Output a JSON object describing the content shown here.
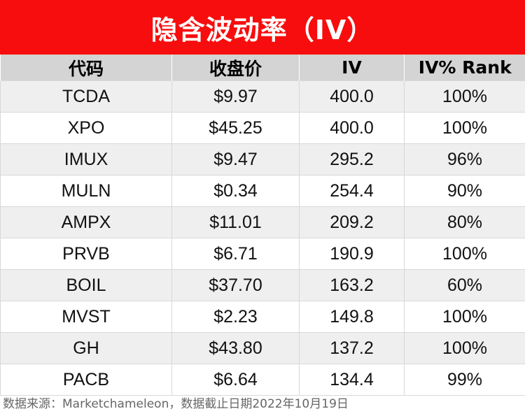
{
  "title": "隐含波动率（IV）",
  "headers": [
    "代码",
    "收盘价",
    "IV",
    "IV% Rank"
  ],
  "rows": [
    [
      "TCDA",
      "$9.97",
      "400.0",
      "100%"
    ],
    [
      "XPO",
      "$45.25",
      "400.0",
      "100%"
    ],
    [
      "IMUX",
      "$9.47",
      "295.2",
      "96%"
    ],
    [
      "MULN",
      "$0.34",
      "254.4",
      "90%"
    ],
    [
      "AMPX",
      "$11.01",
      "209.2",
      "80%"
    ],
    [
      "PRVB",
      "$6.71",
      "190.9",
      "100%"
    ],
    [
      "BOIL",
      "$37.70",
      "163.2",
      "60%"
    ],
    [
      "MVST",
      "$2.23",
      "149.8",
      "100%"
    ],
    [
      "GH",
      "$43.80",
      "137.2",
      "100%"
    ],
    [
      "PACB",
      "$6.64",
      "134.4",
      "99%"
    ]
  ],
  "footer": "数据来源：Marketchameleon，数据截止日期2022年10月19日",
  "colors": {
    "title_bg": "#f70d0d",
    "header_bg": "#d4d4d4",
    "stripe": "#efefef"
  }
}
